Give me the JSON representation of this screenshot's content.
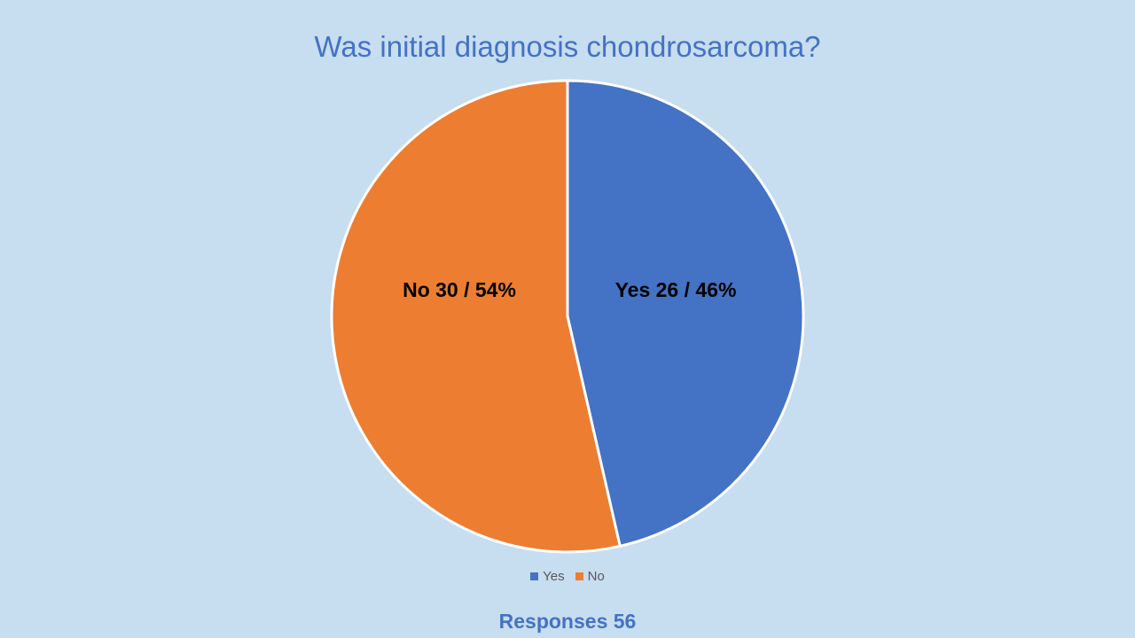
{
  "chart_data": {
    "type": "pie",
    "title": "Was initial diagnosis chondrosarcoma?",
    "categories": [
      "Yes",
      "No"
    ],
    "values": [
      26,
      30
    ],
    "percentages": [
      46,
      54
    ],
    "colors": [
      "#4472c4",
      "#ed7d31"
    ],
    "data_labels": [
      "Yes 26 / 46%",
      "No 30 / 54%"
    ],
    "legend": [
      "Yes",
      "No"
    ],
    "legend_position": "bottom"
  },
  "footer": {
    "text": "Responses 56"
  },
  "background_color": "#c7ddf0"
}
